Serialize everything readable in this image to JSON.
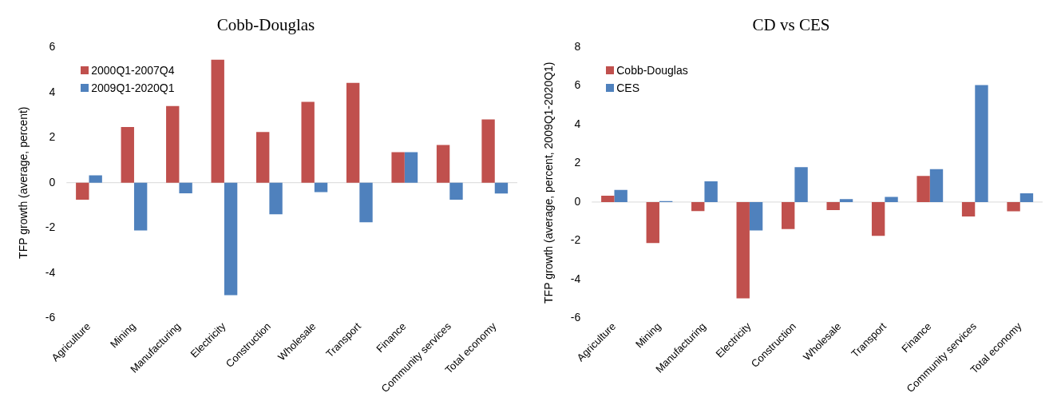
{
  "chart_data": [
    {
      "type": "bar",
      "title": "Cobb-Douglas",
      "ylabel": "TFP growth (average, percent)",
      "categories": [
        "Agriculture",
        "Mining",
        "Manufacturing",
        "Electricity",
        "Construction",
        "Wholesale",
        "Transport",
        "Finance",
        "Community services",
        "Total economy"
      ],
      "series": [
        {
          "name": "2000Q1-2007Q4",
          "color": "#c0504d",
          "values": [
            -0.75,
            2.47,
            3.4,
            5.45,
            2.25,
            3.58,
            4.42,
            1.35,
            1.67,
            2.8
          ]
        },
        {
          "name": "2009Q1-2020Q1",
          "color": "#4f81bd",
          "values": [
            0.33,
            -2.12,
            -0.47,
            -4.98,
            -1.4,
            -0.42,
            -1.75,
            1.35,
            -0.75,
            -0.48
          ]
        }
      ],
      "ylim": [
        -6,
        6
      ],
      "yticks": [
        -6,
        -4,
        -2,
        0,
        2,
        4,
        6
      ],
      "legend": "top left"
    },
    {
      "type": "bar",
      "title": "CD vs CES",
      "ylabel": "TFP growth (average, percent, 2009Q1-2020Q1)",
      "categories": [
        "Agriculture",
        "Mining",
        "Manufacturing",
        "Electricity",
        "Construction",
        "Wholesale",
        "Transport",
        "Finance",
        "Community services",
        "Total economy"
      ],
      "series": [
        {
          "name": "Cobb-Douglas",
          "color": "#c0504d",
          "values": [
            0.33,
            -2.12,
            -0.47,
            -4.98,
            -1.4,
            -0.42,
            -1.75,
            1.35,
            -0.75,
            -0.48
          ]
        },
        {
          "name": "CES",
          "color": "#4f81bd",
          "values": [
            0.63,
            0.05,
            1.07,
            -1.47,
            1.8,
            0.15,
            0.27,
            1.7,
            6.05,
            0.45
          ]
        }
      ],
      "ylim": [
        -6,
        8
      ],
      "yticks": [
        -6,
        -4,
        -2,
        0,
        2,
        4,
        6,
        8
      ],
      "legend": "top left"
    }
  ]
}
